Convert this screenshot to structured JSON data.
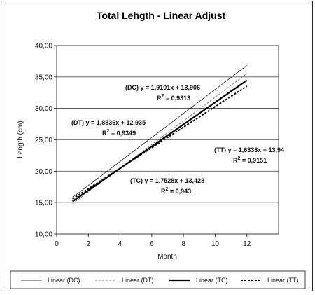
{
  "chart_data": {
    "type": "line",
    "title": "Total Lehgth - Linear Adjust",
    "xlabel": "Month",
    "ylabel": "Length (cm)",
    "xlim": [
      0,
      14
    ],
    "ylim": [
      10,
      40
    ],
    "x_ticks": [
      "0",
      "2",
      "4",
      "6",
      "8",
      "10",
      "12"
    ],
    "y_ticks": [
      "10,00",
      "15,00",
      "20,00",
      "25,00",
      "30,00",
      "35,00",
      "40,00"
    ],
    "grid": "horizontal",
    "legend_position": "bottom",
    "series": [
      {
        "name": "Linear (DC)",
        "style": "thin-solid",
        "color": "#000000",
        "slope": 1.9101,
        "intercept": 13.906,
        "x": [
          1,
          12
        ],
        "y": [
          15.816,
          36.827
        ],
        "equation": "(DC) y = 1,9101x + 13,906",
        "r2_label": "R",
        "r2_value": " = 0,9313"
      },
      {
        "name": "Linear (DT)",
        "style": "thin-dashed",
        "color": "#555555",
        "slope": 1.8836,
        "intercept": 12.935,
        "x": [
          1,
          12
        ],
        "y": [
          14.819,
          35.538
        ],
        "equation": "(DT) y = 1,8836x + 12,935",
        "r2_label": "R",
        "r2_value": " = 0,9349"
      },
      {
        "name": "Linear (TC)",
        "style": "thick-solid",
        "color": "#000000",
        "slope": 1.7528,
        "intercept": 13.428,
        "x": [
          1,
          12
        ],
        "y": [
          15.181,
          34.462
        ],
        "equation": "(TC) y = 1,7528x + 13,428",
        "r2_label": "R",
        "r2_value": " = 0,943"
      },
      {
        "name": "Linear (TT)",
        "style": "thick-dashed",
        "color": "#000000",
        "slope": 1.6338,
        "intercept": 13.94,
        "x": [
          1,
          12
        ],
        "y": [
          15.574,
          33.546
        ],
        "equation": "(TT) y = 1,6338x + 13,94",
        "r2_label": "R",
        "r2_value": " = 0,9151"
      }
    ],
    "superscript": "2"
  }
}
